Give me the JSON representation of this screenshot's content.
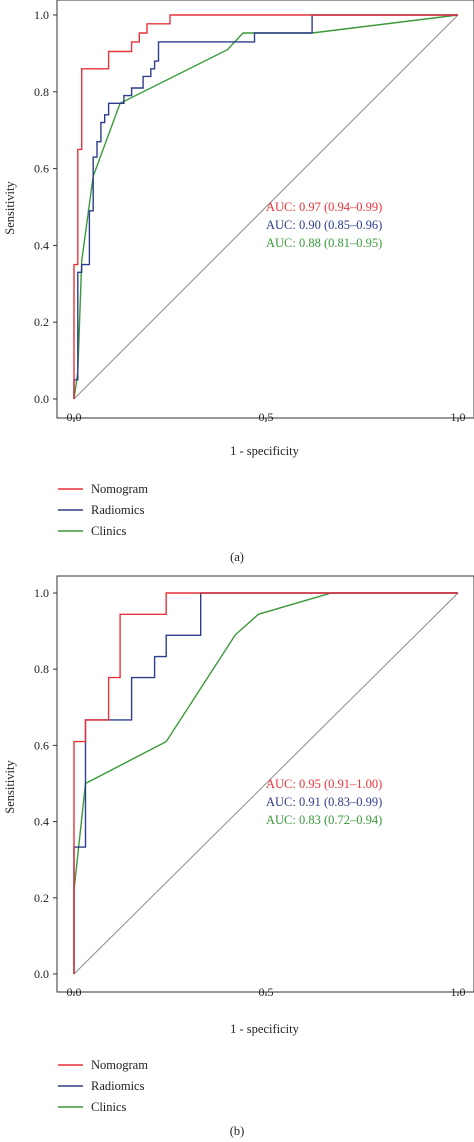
{
  "chart_data": [
    {
      "type": "line",
      "panel_label": "(a)",
      "xlabel": "1 - specificity",
      "ylabel": "Sensitivity",
      "xlim": [
        0,
        1
      ],
      "ylim": [
        0,
        1.05
      ],
      "x_ticks": [
        0.0,
        0.5,
        1.0
      ],
      "x_tick_labels": [
        "0.0",
        "0.5",
        "1.0"
      ],
      "y_ticks": [
        0.0,
        0.2,
        0.4,
        0.6,
        0.8,
        1.0
      ],
      "y_tick_labels": [
        "0.0",
        "0.2",
        "0.4",
        "0.6",
        "0.8",
        "1.0"
      ],
      "reference_line": true,
      "legend_position": "below",
      "series": [
        {
          "name": "Nomogram",
          "color": "#e8333a",
          "auc_text": "AUC: 0.97 (0.94–0.99)",
          "x": [
            0.0,
            0.0,
            0.01,
            0.01,
            0.02,
            0.02,
            0.09,
            0.09,
            0.15,
            0.15,
            0.17,
            0.17,
            0.19,
            0.19,
            0.21,
            0.21,
            0.25,
            0.25,
            0.64,
            0.64,
            1.0
          ],
          "y": [
            0.0,
            0.35,
            0.35,
            0.65,
            0.65,
            0.86,
            0.86,
            0.905,
            0.905,
            0.93,
            0.93,
            0.953,
            0.953,
            0.977,
            0.977,
            0.977,
            0.977,
            1.0,
            1.0,
            1.0,
            1.0
          ]
        },
        {
          "name": "Radiomics",
          "color": "#2e3d8c",
          "auc_text": "AUC: 0.90 (0.85–0.96)",
          "x": [
            0.0,
            0.0,
            0.01,
            0.01,
            0.02,
            0.02,
            0.04,
            0.04,
            0.05,
            0.05,
            0.06,
            0.06,
            0.07,
            0.07,
            0.08,
            0.08,
            0.09,
            0.09,
            0.13,
            0.13,
            0.15,
            0.15,
            0.18,
            0.18,
            0.2,
            0.2,
            0.21,
            0.21,
            0.22,
            0.22,
            0.47,
            0.47,
            0.62,
            0.62,
            1.0
          ],
          "y": [
            0.0,
            0.05,
            0.05,
            0.33,
            0.33,
            0.35,
            0.35,
            0.49,
            0.49,
            0.63,
            0.63,
            0.67,
            0.67,
            0.72,
            0.72,
            0.74,
            0.74,
            0.77,
            0.77,
            0.79,
            0.79,
            0.81,
            0.81,
            0.84,
            0.84,
            0.86,
            0.86,
            0.88,
            0.88,
            0.93,
            0.93,
            0.953,
            0.953,
            1.0,
            1.0
          ]
        },
        {
          "name": "Clinics",
          "color": "#3a9a3a",
          "auc_text": "AUC: 0.88 (0.81–0.95)",
          "x": [
            0.0,
            0.01,
            0.02,
            0.05,
            0.12,
            0.4,
            0.44,
            0.62,
            1.0
          ],
          "y": [
            0.0,
            0.07,
            0.36,
            0.58,
            0.77,
            0.91,
            0.953,
            0.953,
            1.0
          ]
        }
      ]
    },
    {
      "type": "line",
      "panel_label": "(b)",
      "xlabel": "1 - specificity",
      "ylabel": "Sensitivity",
      "xlim": [
        0,
        1
      ],
      "ylim": [
        0,
        1.05
      ],
      "x_ticks": [
        0.0,
        0.5,
        1.0
      ],
      "x_tick_labels": [
        "0.0",
        "0.5",
        "1.0"
      ],
      "y_ticks": [
        0.0,
        0.2,
        0.4,
        0.6,
        0.8,
        1.0
      ],
      "y_tick_labels": [
        "0.0",
        "0.2",
        "0.4",
        "0.6",
        "0.8",
        "1.0"
      ],
      "reference_line": true,
      "legend_position": "below",
      "series": [
        {
          "name": "Nomogram",
          "color": "#e8333a",
          "auc_text": "AUC: 0.95 (0.91–1.00)",
          "x": [
            0.0,
            0.0,
            0.03,
            0.03,
            0.09,
            0.09,
            0.12,
            0.12,
            0.24,
            0.24,
            1.0
          ],
          "y": [
            0.0,
            0.61,
            0.61,
            0.667,
            0.667,
            0.778,
            0.778,
            0.944,
            0.944,
            1.0,
            1.0
          ]
        },
        {
          "name": "Radiomics",
          "color": "#2e3d8c",
          "auc_text": "AUC: 0.91 (0.83–0.99)",
          "x": [
            0.0,
            0.0,
            0.03,
            0.03,
            0.15,
            0.15,
            0.21,
            0.21,
            0.24,
            0.24,
            0.33,
            0.33,
            1.0
          ],
          "y": [
            0.0,
            0.333,
            0.333,
            0.667,
            0.667,
            0.778,
            0.778,
            0.833,
            0.833,
            0.889,
            0.889,
            1.0,
            1.0
          ]
        },
        {
          "name": "Clinics",
          "color": "#3a9a3a",
          "auc_text": "AUC: 0.83 (0.72–0.94)",
          "x": [
            0.0,
            0.0,
            0.03,
            0.24,
            0.42,
            0.48,
            0.67,
            1.0
          ],
          "y": [
            0.0,
            0.22,
            0.5,
            0.61,
            0.89,
            0.944,
            1.0,
            1.0
          ]
        }
      ]
    }
  ]
}
